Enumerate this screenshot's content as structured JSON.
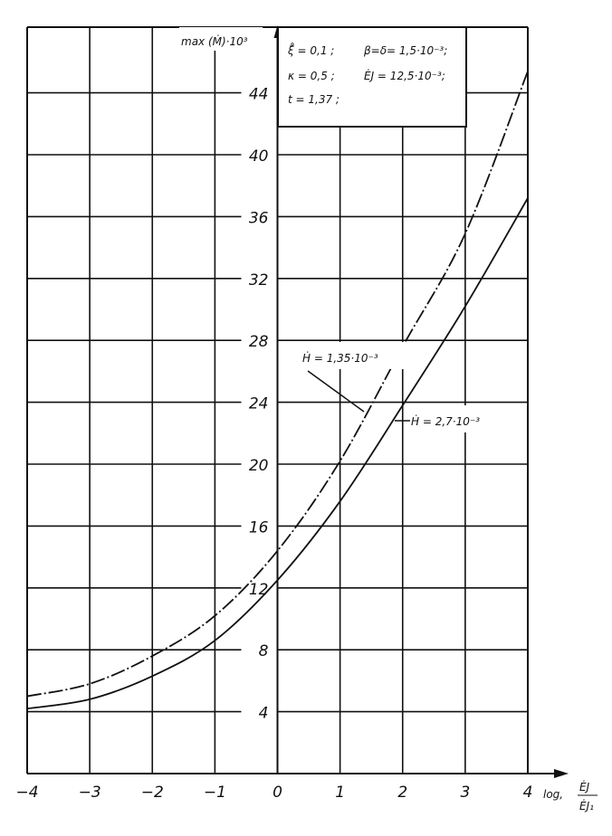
{
  "chart_data": {
    "type": "line",
    "ylabel": "max (Ṁ)·10³",
    "xlabel": "log₁ ĖJ / ĖJ₁",
    "xlabel_prefix": "log,",
    "xlabel_num": "ĖJ",
    "xlabel_den": "ĖJ₁",
    "xlim": [
      -4,
      4
    ],
    "ylim": [
      0,
      48
    ],
    "grid": true,
    "x_ticks": [
      "-4",
      "-3",
      "-2",
      "-1",
      "0",
      "1",
      "2",
      "3",
      "4"
    ],
    "y_ticks": [
      "4",
      "8",
      "12",
      "16",
      "20",
      "24",
      "28",
      "32",
      "36",
      "40",
      "44"
    ],
    "parameters": [
      "ξ̊ = 0,1 ;",
      "β=δ= 1,5·10⁻³;",
      "κ = 0,5 ;",
      "ĖJ = 12,5·10⁻³;",
      "t = 1,37 ;"
    ],
    "x": [
      -4,
      -3,
      -2,
      -1,
      0,
      1,
      2,
      3,
      4
    ],
    "series": [
      {
        "name": "Ḣ = 1,35·10⁻³",
        "style": "dash-dot",
        "values": [
          5.0,
          5.8,
          7.6,
          10.2,
          14.4,
          20.2,
          27.6,
          34.9,
          45.4
        ]
      },
      {
        "name": "Ḣ = 2,7·10⁻³",
        "style": "solid",
        "values": [
          4.2,
          4.8,
          6.3,
          8.6,
          12.5,
          17.6,
          23.8,
          30.2,
          37.2
        ]
      }
    ],
    "line_color": "#111111",
    "background": "#ffffff"
  }
}
